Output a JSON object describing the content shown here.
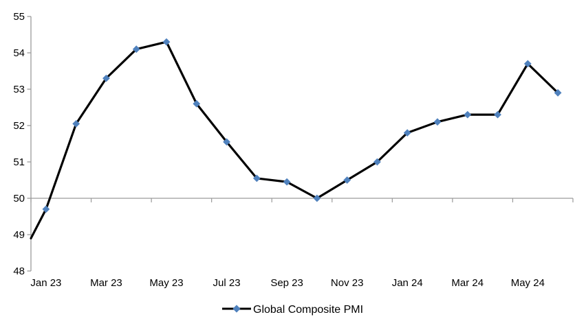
{
  "chart_data": {
    "type": "line",
    "title": "",
    "categories": [
      "Jan 23",
      "Feb 23",
      "Mar 23",
      "Apr 23",
      "May 23",
      "Jun 23",
      "Jul 23",
      "Aug 23",
      "Sep 23",
      "Oct 23",
      "Nov 23",
      "Dec 23",
      "Jan 24",
      "Feb 24",
      "Mar 24",
      "Apr 24",
      "May 24",
      "Jun 24"
    ],
    "series": [
      {
        "name": "Global Composite PMI",
        "values": [
          49.7,
          52.05,
          53.3,
          54.1,
          54.3,
          52.6,
          51.55,
          50.55,
          50.45,
          50.0,
          50.5,
          51.0,
          51.8,
          52.1,
          52.3,
          52.3,
          53.7,
          52.9
        ],
        "clipped_entry_at_left_edge": 48.9,
        "line_color": "#000000",
        "marker": "diamond",
        "marker_color": "#4F81BD"
      }
    ],
    "x_tick_labels": [
      "Jan 23",
      "Mar 23",
      "May 23",
      "Jul 23",
      "Sep 23",
      "Nov 23",
      "Jan 24",
      "Mar 24",
      "May 24"
    ],
    "y_ticks": [
      48,
      49,
      50,
      51,
      52,
      53,
      54,
      55
    ],
    "ylim": [
      48,
      55
    ],
    "x_axis_position_value": 50,
    "x_label_interval_months": 2,
    "grid": false,
    "axis_color": "#9A9A9A",
    "text_color": "#000000",
    "legend": {
      "position": "bottom-center",
      "label": "Global Composite PMI"
    }
  }
}
